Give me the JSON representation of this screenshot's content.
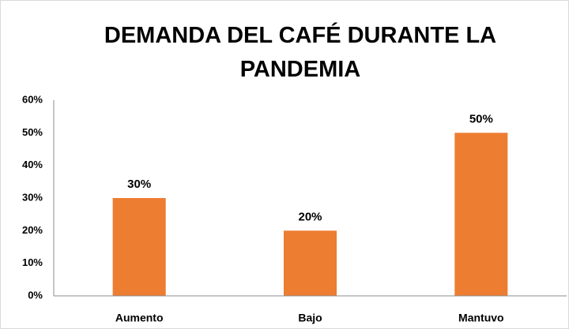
{
  "chart_data": {
    "type": "bar",
    "title": "DEMANDA DEL CAFÉ DURANTE LA PANDEMIA",
    "categories": [
      "Aumento",
      "Bajo",
      "Mantuvo"
    ],
    "values": [
      30,
      20,
      50
    ],
    "value_labels": [
      "30%",
      "20%",
      "50%"
    ],
    "color": "#ed7d31",
    "ylim": [
      0,
      60
    ],
    "yticks": [
      {
        "value": 0,
        "label": "0%"
      },
      {
        "value": 10,
        "label": "10%"
      },
      {
        "value": 20,
        "label": "20%"
      },
      {
        "value": 30,
        "label": "30%"
      },
      {
        "value": 40,
        "label": "40%"
      },
      {
        "value": 50,
        "label": "50%"
      },
      {
        "value": 60,
        "label": "60%"
      }
    ],
    "grid": false
  }
}
